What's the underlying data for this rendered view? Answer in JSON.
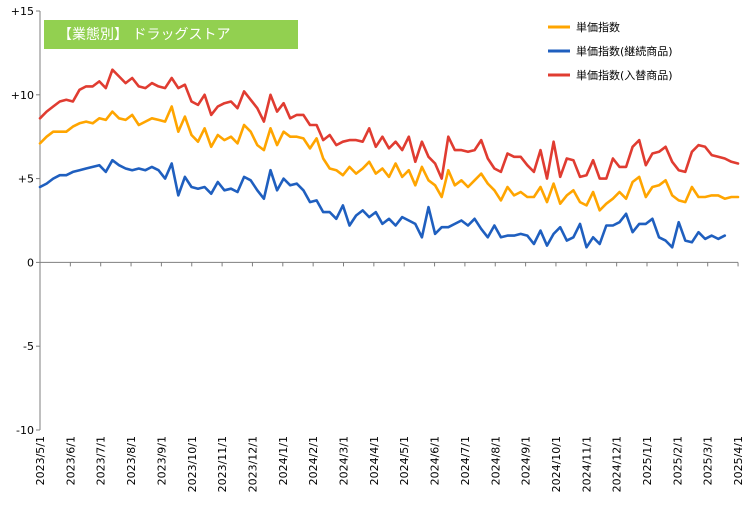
{
  "chart_data": {
    "type": "line",
    "title": "【業態別】 ドラッグストア",
    "title_bg_color": "#92D050",
    "title_text_color": "#FFFFFF",
    "xlabel": "",
    "ylabel": "",
    "ylim": [
      -10,
      15
    ],
    "y_ticks": [
      15,
      10,
      5,
      0,
      -5,
      -10
    ],
    "y_tick_labels": [
      "+15",
      "+10",
      "+5",
      "0",
      "-5",
      "-10"
    ],
    "grid": false,
    "legend_position": "top-right",
    "x_tick_labels": [
      "2023/5/1",
      "2023/6/1",
      "2023/7/1",
      "2023/8/1",
      "2023/9/1",
      "2023/10/1",
      "2023/11/1",
      "2023/12/1",
      "2024/1/1",
      "2024/2/1",
      "2024/3/1",
      "2024/4/1",
      "2024/5/1",
      "2024/6/1",
      "2024/7/1",
      "2024/8/1",
      "2024/9/1",
      "2024/10/1",
      "2024/11/1",
      "2024/12/1",
      "2025/1/1",
      "2025/2/1",
      "2025/3/1",
      "2025/4/1"
    ],
    "series": [
      {
        "name": "単価指数",
        "color": "#FFA500",
        "values": [
          7.1,
          7.5,
          7.8,
          7.8,
          7.8,
          8.1,
          8.3,
          8.4,
          8.3,
          8.6,
          8.5,
          9.0,
          8.6,
          8.5,
          8.8,
          8.2,
          8.4,
          8.6,
          8.5,
          8.4,
          9.3,
          7.8,
          8.7,
          7.6,
          7.2,
          8.0,
          6.9,
          7.6,
          7.3,
          7.5,
          7.1,
          8.2,
          7.8,
          7.0,
          6.7,
          8.0,
          7.0,
          7.8,
          7.5,
          7.5,
          7.4,
          6.8,
          7.4,
          6.2,
          5.6,
          5.5,
          5.2,
          5.7,
          5.3,
          5.6,
          6.0,
          5.3,
          5.6,
          5.1,
          5.9,
          5.1,
          5.5,
          4.6,
          5.7,
          4.9,
          4.6,
          3.9,
          5.5,
          4.6,
          4.9,
          4.5,
          4.9,
          5.3,
          4.7,
          4.3,
          3.7,
          4.5,
          4.0,
          4.2,
          3.9,
          3.9,
          4.5,
          3.6,
          4.7,
          3.5,
          4.0,
          4.3,
          3.6,
          3.4,
          4.2,
          3.1,
          3.5,
          3.8,
          4.2,
          3.8,
          4.8,
          5.1,
          3.9,
          4.5,
          4.6,
          4.9,
          4.0,
          3.7,
          3.6,
          4.5,
          3.9,
          3.9,
          4.0,
          4.0,
          3.8,
          3.9,
          3.9
        ]
      },
      {
        "name": "単価指数(継続商品)",
        "color": "#1F5FBF",
        "values": [
          4.5,
          4.7,
          5.0,
          5.2,
          5.2,
          5.4,
          5.5,
          5.6,
          5.7,
          5.8,
          5.4,
          6.1,
          5.8,
          5.6,
          5.5,
          5.6,
          5.5,
          5.7,
          5.5,
          5.0,
          5.9,
          4.0,
          5.1,
          4.5,
          4.4,
          4.5,
          4.1,
          4.8,
          4.3,
          4.4,
          4.2,
          5.1,
          4.9,
          4.3,
          3.8,
          5.5,
          4.3,
          5.0,
          4.6,
          4.7,
          4.3,
          3.6,
          3.7,
          3.0,
          3.0,
          2.6,
          3.4,
          2.2,
          2.8,
          3.1,
          2.7,
          3.0,
          2.3,
          2.6,
          2.2,
          2.7,
          2.5,
          2.3,
          1.5,
          3.3,
          1.7,
          2.1,
          2.1,
          2.3,
          2.5,
          2.2,
          2.6,
          2.0,
          1.5,
          2.2,
          1.5,
          1.6,
          1.6,
          1.7,
          1.6,
          1.1,
          1.9,
          1.0,
          1.7,
          2.1,
          1.3,
          1.5,
          2.3,
          0.9,
          1.5,
          1.1,
          2.2,
          2.2,
          2.4,
          2.9,
          1.8,
          2.3,
          2.3,
          2.6,
          1.5,
          1.3,
          0.9,
          2.4,
          1.3,
          1.2,
          1.8,
          1.4,
          1.6,
          1.4,
          1.6
        ]
      },
      {
        "name": "単価指数(入替商品)",
        "color": "#E03C31",
        "values": [
          8.6,
          9.0,
          9.3,
          9.6,
          9.7,
          9.6,
          10.3,
          10.5,
          10.5,
          10.8,
          10.4,
          11.5,
          11.1,
          10.7,
          11.0,
          10.5,
          10.4,
          10.7,
          10.5,
          10.4,
          11.0,
          10.4,
          10.6,
          9.6,
          9.4,
          10.0,
          8.8,
          9.3,
          9.5,
          9.6,
          9.2,
          10.2,
          9.7,
          9.2,
          8.4,
          10.0,
          9.0,
          9.5,
          8.6,
          8.8,
          8.8,
          8.2,
          8.2,
          7.3,
          7.6,
          7.0,
          7.2,
          7.3,
          7.3,
          7.2,
          8.0,
          6.9,
          7.5,
          6.8,
          7.2,
          6.7,
          7.5,
          6.0,
          7.2,
          6.3,
          5.9,
          5.0,
          7.5,
          6.7,
          6.7,
          6.6,
          6.7,
          7.3,
          6.2,
          5.6,
          5.4,
          6.5,
          6.3,
          6.3,
          5.8,
          5.4,
          6.7,
          5.0,
          7.2,
          5.1,
          6.2,
          6.1,
          5.1,
          5.2,
          6.1,
          5.0,
          5.0,
          6.2,
          5.7,
          5.7,
          6.9,
          7.3,
          5.8,
          6.5,
          6.6,
          6.9,
          6.0,
          5.5,
          5.4,
          6.6,
          7.0,
          6.9,
          6.4,
          6.3,
          6.2,
          6.0,
          5.9
        ]
      }
    ]
  }
}
